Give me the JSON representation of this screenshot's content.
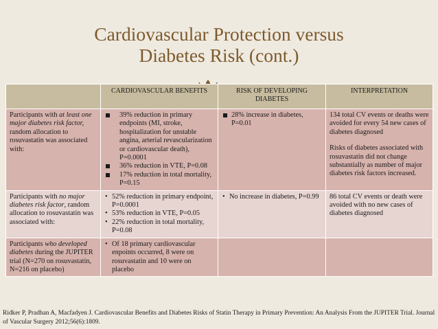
{
  "title": {
    "line1": "Cardiovascular Protection versus",
    "line2": "Diabetes Risk (cont.)"
  },
  "ornament_icon": "fleur-de-lis-ornament",
  "colors": {
    "title": "#7d5a2d",
    "header_bg": "#c7bc9f",
    "row_dark": "#d7b3ad",
    "row_light": "#e7d5d2",
    "background": "#efeae0"
  },
  "table": {
    "headers": [
      "",
      "CARDIOVASCULAR BENEFITS",
      "RISK OF DEVELOPING DIABETES",
      "INTERPRETATION"
    ],
    "rows": [
      {
        "group": {
          "pre": "Participants with ",
          "em": "at least one major diabetes risk factor,",
          "post": " random allocation to rosuvastatin was associated with:"
        },
        "benefits": [
          "39% reduction in primary endpoints (MI, stroke, hospitalization for unstable angina, arterial revascularization or cardiovascular death), P=0.0001",
          "36% reduction in VTE, P=0.08",
          "17% reduction in total mortality, P=0.15"
        ],
        "diabetes_risk": [
          "28% increase in diabetes, P=0.01"
        ],
        "interpretation": [
          "134 total CV events or deaths were avoided for every 54 new cases of diabetes diagnosed",
          "Risks of diabetes associated with rosuvastatin did not change substantially as number of major diabetes risk factors increased."
        ]
      },
      {
        "group": {
          "pre": "Participants with ",
          "em": "no major diabetes risk factor",
          "post": ", random allocation to rosuvastatin was associated with:"
        },
        "benefits": [
          "52% reduction in primary endpoint, P=0.0001",
          "53% reduction in VTE, P=0.05",
          "22% reduction in total mortality, P=0.08"
        ],
        "diabetes_risk": [
          "No increase in diabetes, P=0.99"
        ],
        "interpretation": [
          "86 total CV events or death were avoided with no new cases of diabetes diagnosed"
        ]
      },
      {
        "group": {
          "pre": "Participants ",
          "em": "who developed diabetes",
          "post": " during the JUPITER trial (N=270 on rosuvastatin, N=216 on placebo)"
        },
        "benefits": [
          "Of 18 primary cardiovascular enpoints occurred, 8 were on rosuvastatin and 10 were on placebo"
        ],
        "diabetes_risk": [],
        "interpretation": []
      }
    ]
  },
  "citation": "Ridker P, Pradhan A, Macfadyen J. Cardiovascular Benefits and Diabetes Risks of Statin Therapy in Primary Prevention: An Analysis From the JUPITER Trial. Journal of Vascular Surgery 2012;56(6):1809."
}
